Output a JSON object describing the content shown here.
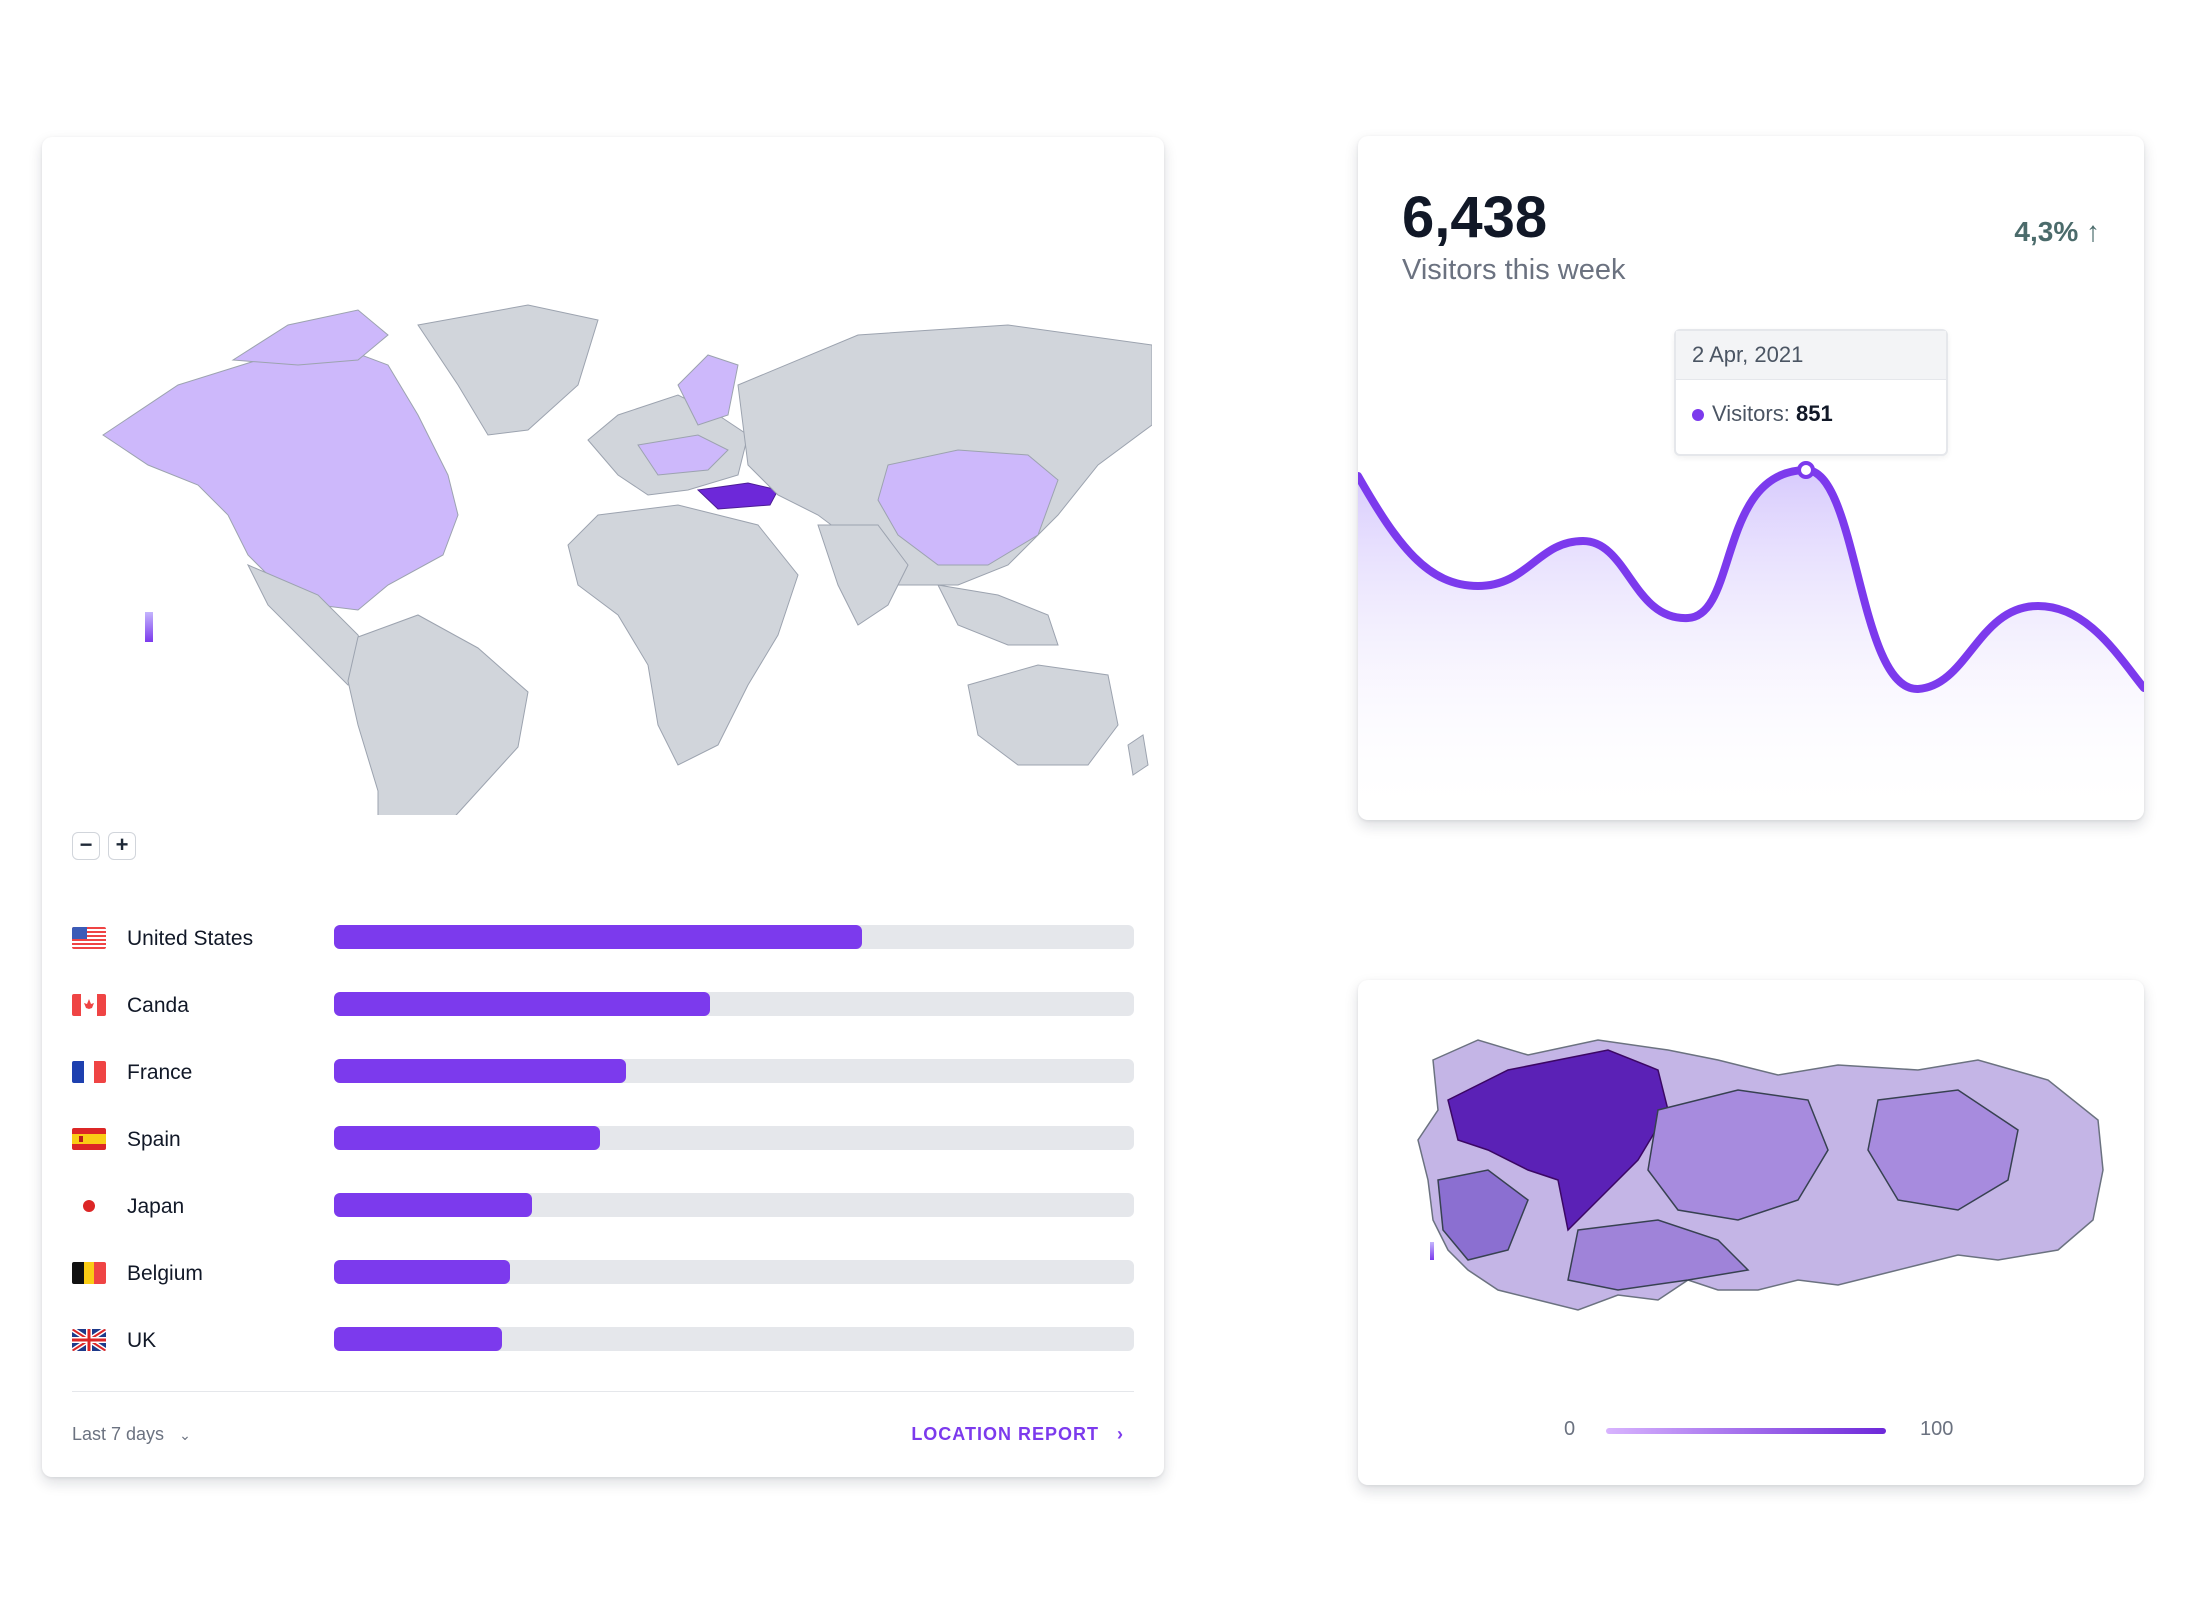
{
  "location_card": {
    "zoom_out": "−",
    "zoom_in": "+",
    "countries": [
      {
        "name": "United States",
        "share": 0.66,
        "flag": "us"
      },
      {
        "name": "Canda",
        "share": 0.47,
        "flag": "ca"
      },
      {
        "name": "France",
        "share": 0.365,
        "flag": "fr"
      },
      {
        "name": "Spain",
        "share": 0.333,
        "flag": "es"
      },
      {
        "name": "Japan",
        "share": 0.247,
        "flag": "jp"
      },
      {
        "name": "Belgium",
        "share": 0.22,
        "flag": "be"
      },
      {
        "name": "UK",
        "share": 0.21,
        "flag": "gb"
      }
    ],
    "range_label": "Last 7 days",
    "report_label": "LOCATION REPORT"
  },
  "visitors_card": {
    "total": "6,438",
    "subtitle": "Visitors this week",
    "change": "4,3% ↑",
    "tooltip": {
      "date": "2 Apr, 2021",
      "label": "Visitors:",
      "value": "851"
    }
  },
  "turkey_card": {
    "scale_min": "0",
    "scale_max": "100"
  },
  "colors": {
    "accent": "#7c3aed",
    "map_land": "#d1d5db",
    "map_highlight": "#c4b5fd",
    "map_focus": "#6d28d9"
  }
}
